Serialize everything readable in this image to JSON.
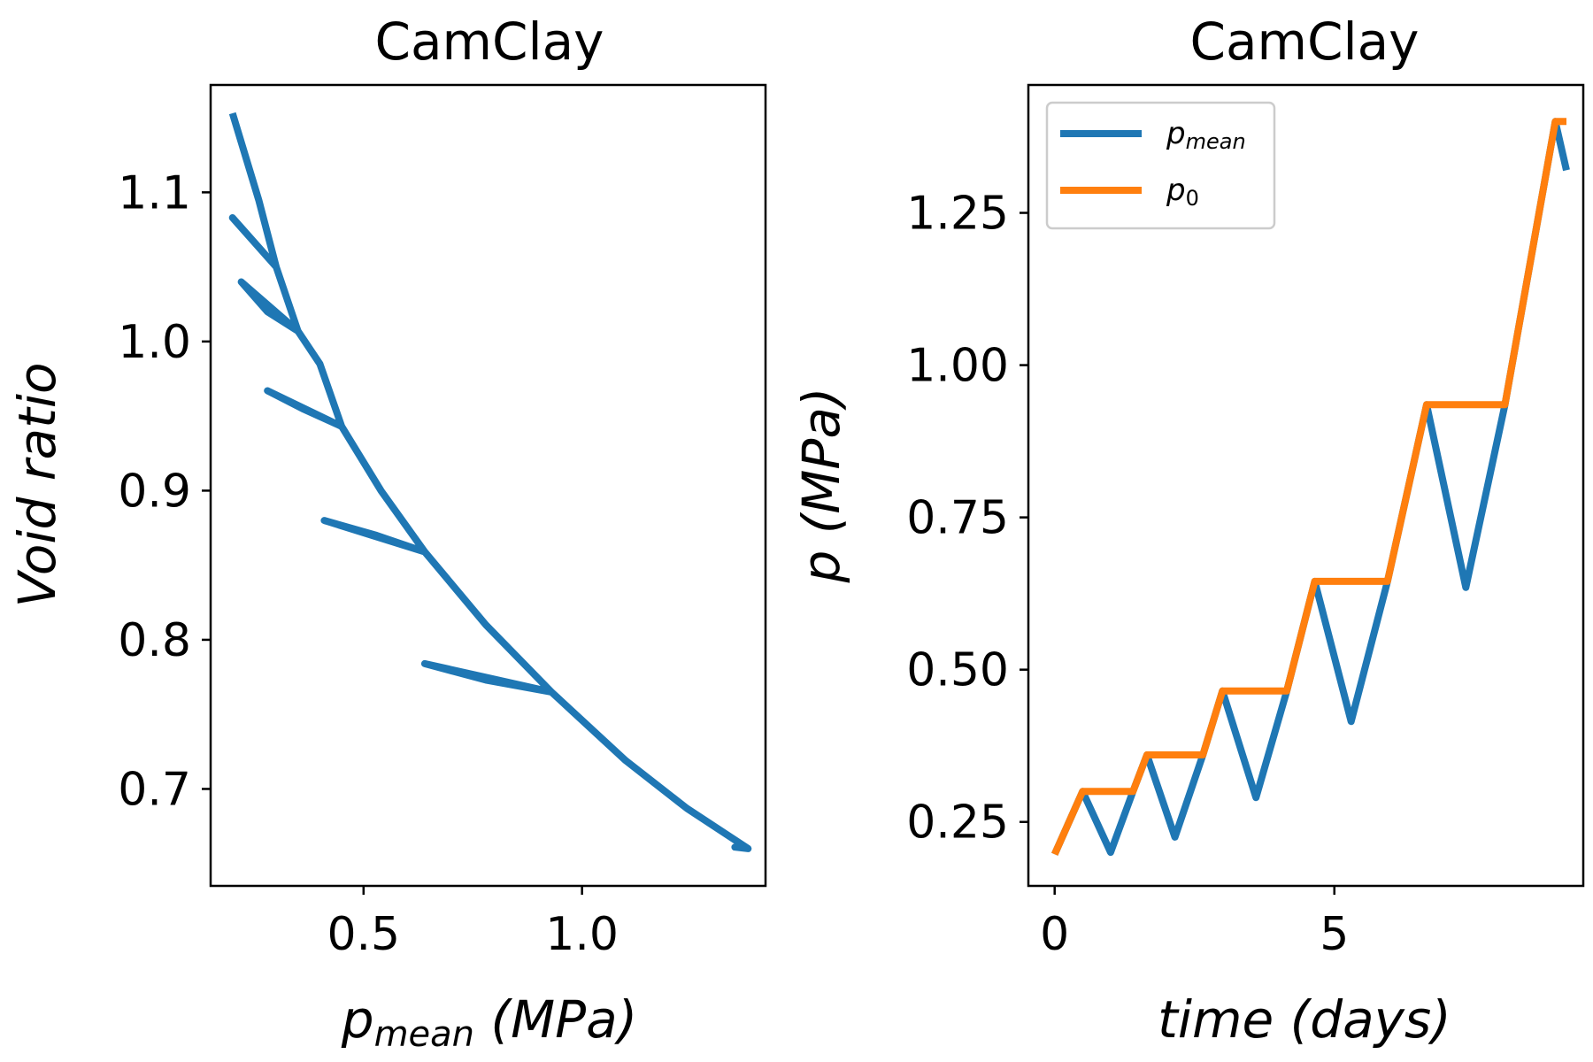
{
  "colors": {
    "pmean": "#1f77b4",
    "p0": "#ff7f0e"
  },
  "chart_data": [
    {
      "type": "line",
      "title": "CamClay",
      "xlabel": {
        "main": "p",
        "sub": "mean",
        "rest": " (MPa)"
      },
      "ylabel": "Void ratio",
      "xlim": [
        0.15,
        1.42
      ],
      "ylim": [
        0.635,
        1.172
      ],
      "xticks": [
        {
          "value": 0.5,
          "label": "0.5"
        },
        {
          "value": 1.0,
          "label": "1.0"
        }
      ],
      "yticks": [
        {
          "value": 0.7,
          "label": "0.7"
        },
        {
          "value": 0.8,
          "label": "0.8"
        },
        {
          "value": 0.9,
          "label": "0.9"
        },
        {
          "value": 1.0,
          "label": "1.0"
        },
        {
          "value": 1.1,
          "label": "1.1"
        }
      ],
      "grid": false,
      "series": [
        {
          "color": "pmean",
          "points": [
            [
              0.2,
              1.153
            ],
            [
              0.26,
              1.095
            ],
            [
              0.3,
              1.05
            ],
            [
              0.2,
              1.083
            ],
            [
              0.3,
              1.05
            ],
            [
              0.35,
              1.007
            ],
            [
              0.22,
              1.04
            ],
            [
              0.28,
              1.02
            ],
            [
              0.35,
              1.007
            ],
            [
              0.4,
              0.985
            ],
            [
              0.45,
              0.943
            ],
            [
              0.28,
              0.967
            ],
            [
              0.36,
              0.955
            ],
            [
              0.45,
              0.943
            ],
            [
              0.54,
              0.9
            ],
            [
              0.64,
              0.859
            ],
            [
              0.41,
              0.88
            ],
            [
              0.53,
              0.87
            ],
            [
              0.64,
              0.859
            ],
            [
              0.78,
              0.81
            ],
            [
              0.93,
              0.765
            ],
            [
              0.64,
              0.784
            ],
            [
              0.78,
              0.773
            ],
            [
              0.93,
              0.765
            ],
            [
              1.1,
              0.719
            ],
            [
              1.24,
              0.687
            ],
            [
              1.38,
              0.66
            ],
            [
              1.35,
              0.661
            ],
            [
              1.38,
              0.66
            ]
          ]
        }
      ]
    },
    {
      "type": "line",
      "title": "CamClay",
      "xlabel": "time (days)",
      "ylabel": "p (MPa)",
      "xlim": [
        -0.47,
        9.45
      ],
      "ylim": [
        0.145,
        1.46
      ],
      "xticks": [
        {
          "value": 0,
          "label": "0"
        },
        {
          "value": 5,
          "label": "5"
        }
      ],
      "yticks": [
        {
          "value": 0.25,
          "label": "0.25"
        },
        {
          "value": 0.5,
          "label": "0.50"
        },
        {
          "value": 0.75,
          "label": "0.75"
        },
        {
          "value": 1.0,
          "label": "1.00"
        },
        {
          "value": 1.25,
          "label": "1.25"
        }
      ],
      "grid": false,
      "legend": {
        "position": "top-left"
      },
      "series": [
        {
          "name": {
            "main": "p",
            "sub": "mean"
          },
          "color": "pmean",
          "points": [
            [
              0,
              0.197
            ],
            [
              0.5,
              0.3
            ],
            [
              1.0,
              0.2
            ],
            [
              1.4,
              0.3
            ],
            [
              1.65,
              0.36
            ],
            [
              2.15,
              0.225
            ],
            [
              2.65,
              0.36
            ],
            [
              3.0,
              0.465
            ],
            [
              3.6,
              0.29
            ],
            [
              4.15,
              0.465
            ],
            [
              4.65,
              0.645
            ],
            [
              5.3,
              0.415
            ],
            [
              5.95,
              0.645
            ],
            [
              6.65,
              0.935
            ],
            [
              7.35,
              0.635
            ],
            [
              8.05,
              0.935
            ],
            [
              8.95,
              1.4
            ],
            [
              9.15,
              1.32
            ]
          ]
        },
        {
          "name": {
            "main": "p",
            "sub": "0"
          },
          "color": "p0",
          "points": [
            [
              0,
              0.197
            ],
            [
              0.5,
              0.3
            ],
            [
              1.4,
              0.3
            ],
            [
              1.65,
              0.36
            ],
            [
              2.65,
              0.36
            ],
            [
              3.0,
              0.465
            ],
            [
              4.15,
              0.465
            ],
            [
              4.65,
              0.645
            ],
            [
              5.95,
              0.645
            ],
            [
              6.65,
              0.935
            ],
            [
              8.05,
              0.935
            ],
            [
              8.95,
              1.4
            ],
            [
              9.15,
              1.4
            ]
          ]
        }
      ]
    }
  ]
}
